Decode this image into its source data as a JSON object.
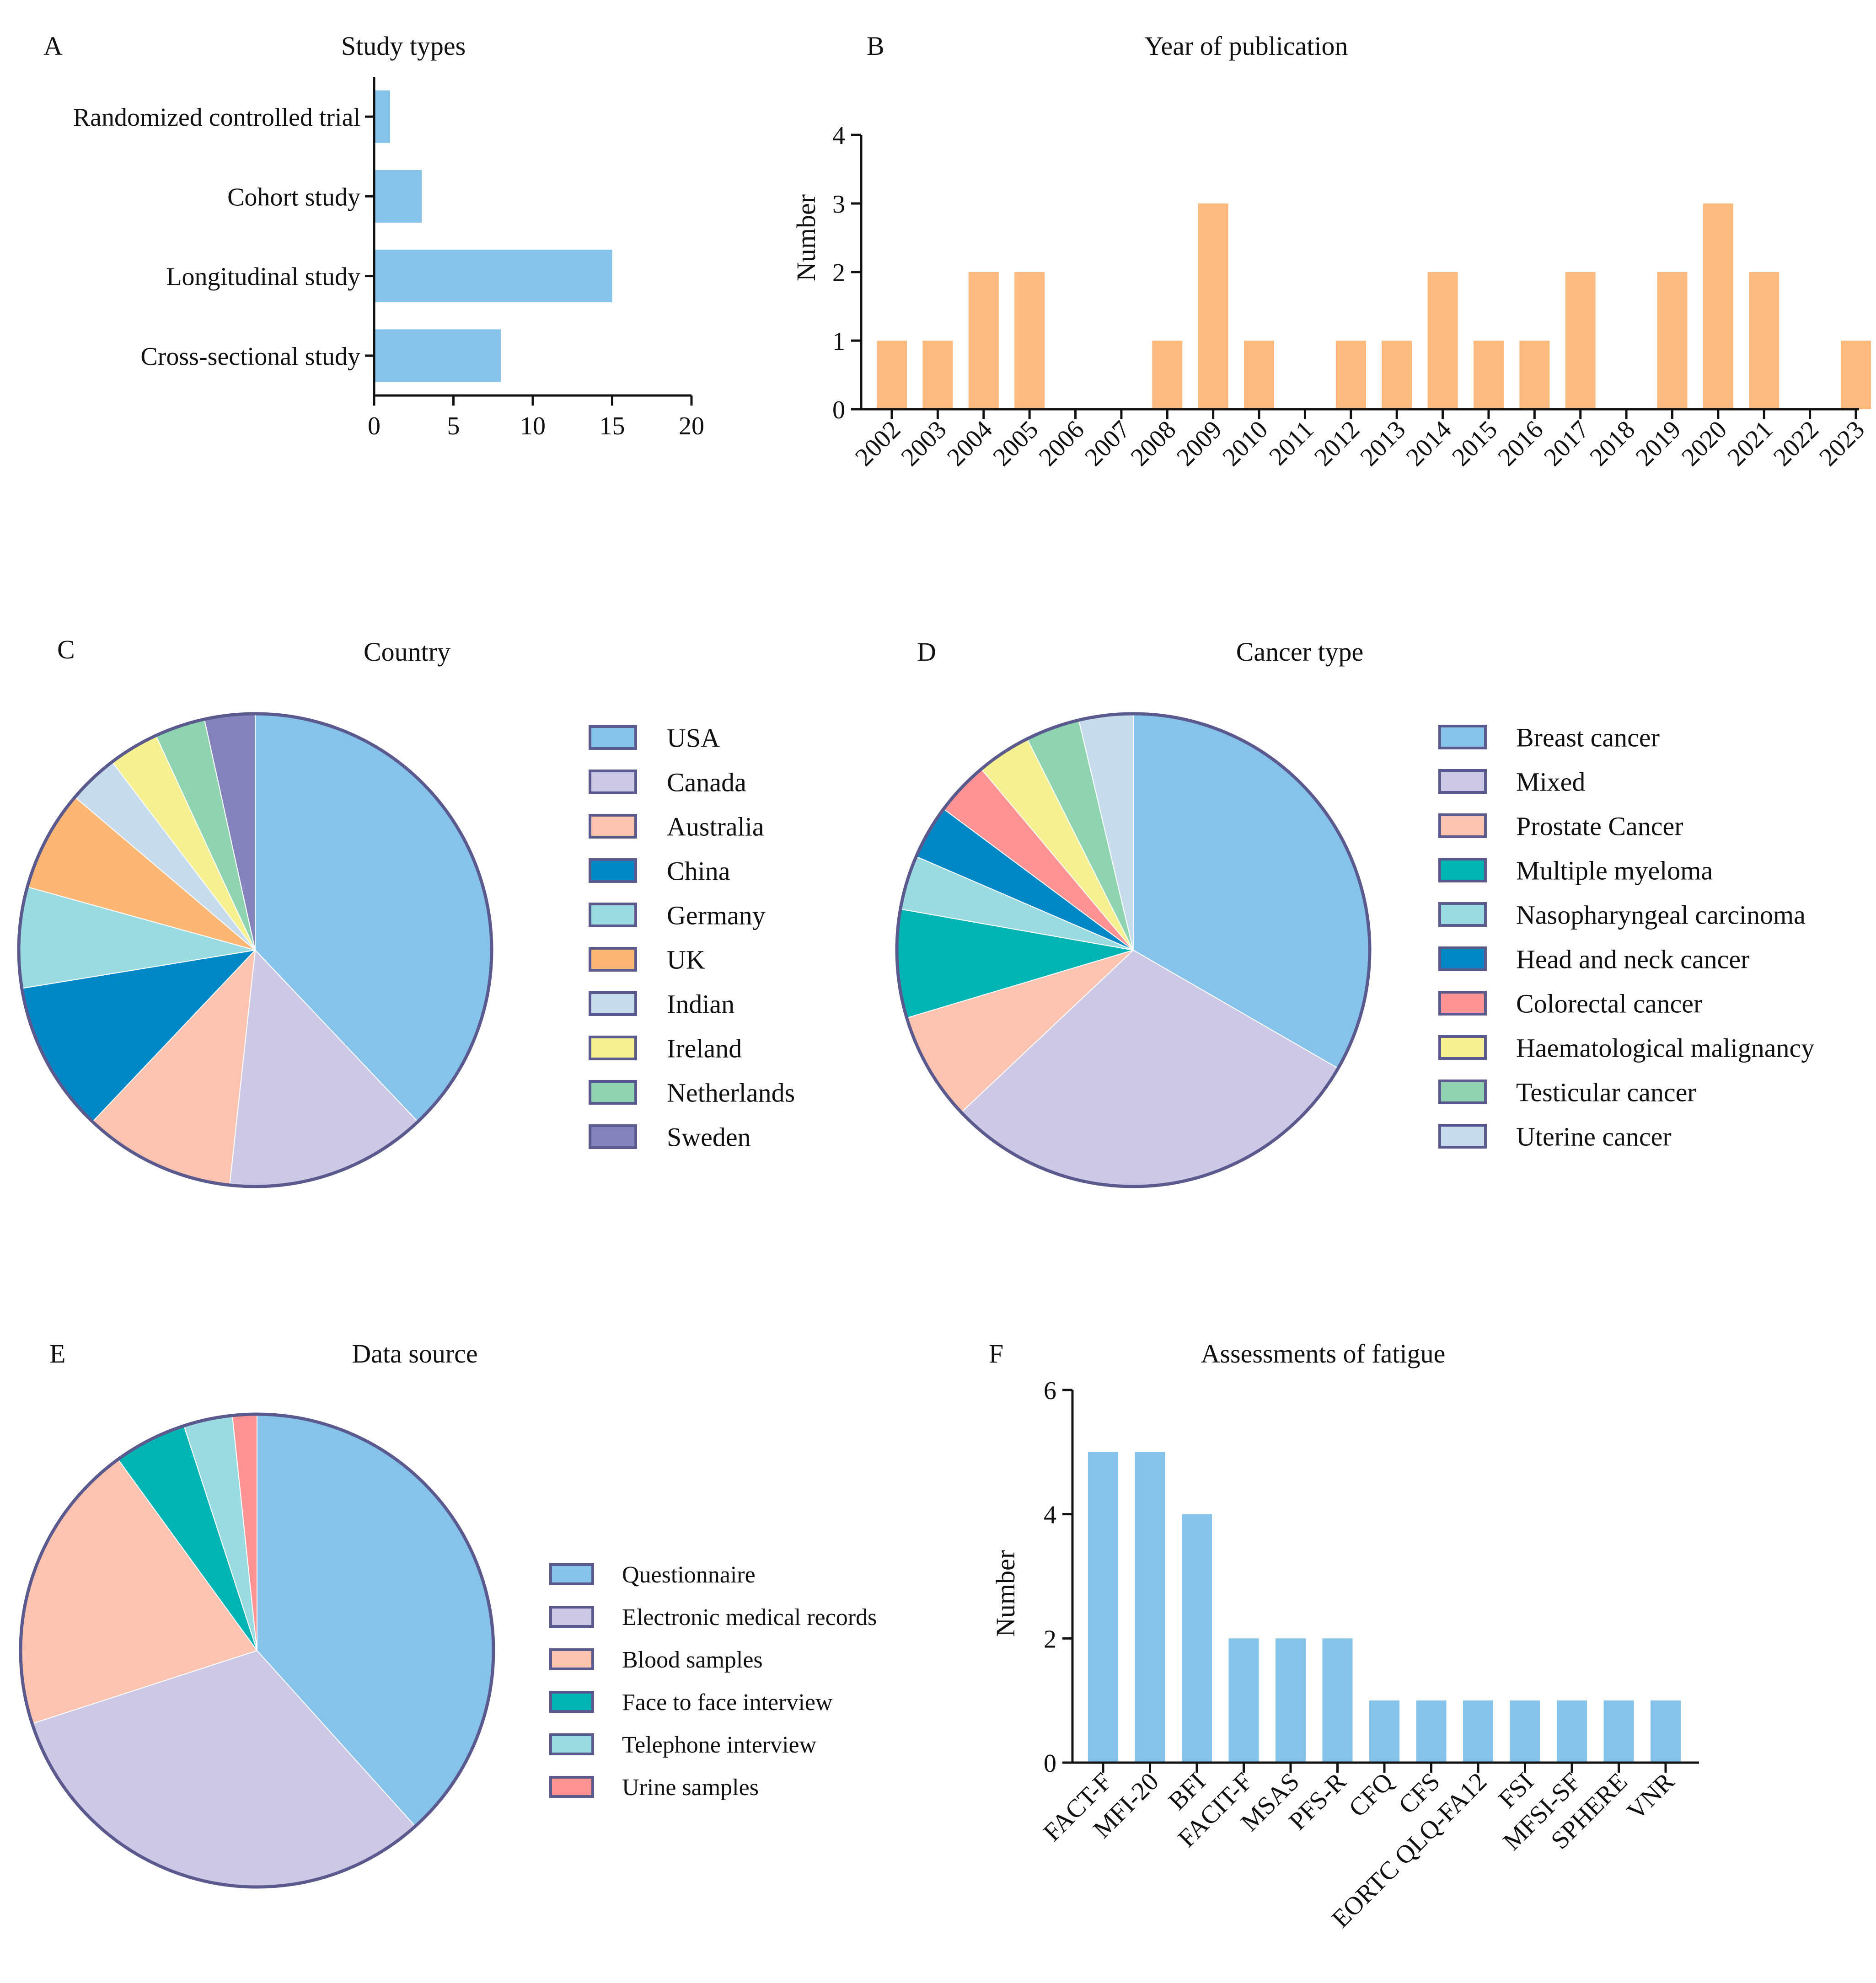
{
  "chart_data": [
    {
      "panel": "A",
      "type": "bar",
      "orientation": "horizontal",
      "title": "Study types",
      "categories": [
        "Randomized controlled trial",
        "Cohort study",
        "Longitudinal study",
        "Cross-sectional study"
      ],
      "values": [
        1,
        3,
        15,
        8
      ],
      "xlabel": "",
      "ylabel": "",
      "xlim": [
        0,
        20
      ],
      "xticks": [
        0,
        5,
        10,
        15,
        20
      ],
      "color": "#85C3EB",
      "grid": false
    },
    {
      "panel": "B",
      "type": "bar",
      "title": "Year of publication",
      "categories": [
        "2002",
        "2003",
        "2004",
        "2005",
        "2006",
        "2007",
        "2008",
        "2009",
        "2010",
        "2011",
        "2012",
        "2013",
        "2014",
        "2015",
        "2016",
        "2017",
        "2018",
        "2019",
        "2020",
        "2021",
        "2022",
        "2023"
      ],
      "values": [
        1,
        1,
        2,
        2,
        0,
        0,
        1,
        3,
        1,
        0,
        1,
        1,
        2,
        1,
        1,
        2,
        0,
        2,
        3,
        2,
        0,
        1
      ],
      "xlabel": "",
      "ylabel": "Number",
      "ylim": [
        0,
        4
      ],
      "yticks": [
        0,
        1,
        2,
        3,
        4
      ],
      "color": "#FDBA7E",
      "grid": false
    },
    {
      "panel": "C",
      "type": "pie",
      "title": "Country",
      "labels": [
        "USA",
        "Canada",
        "Australia",
        "China",
        "Germany",
        "UK",
        "Indian",
        "Ireland",
        "Netherlands",
        "Sweden"
      ],
      "values": [
        11,
        4,
        3,
        3,
        2,
        2,
        1,
        1,
        1,
        1
      ],
      "colors": [
        "#85C3EB",
        "#CCC8E6",
        "#FCC4B0",
        "#0087C6",
        "#9ADBE2",
        "#FDB774",
        "#C6DBEC",
        "#F5F190",
        "#8ED4B1",
        "#8482BA"
      ],
      "legend": "right"
    },
    {
      "panel": "D",
      "type": "pie",
      "title": "Cancer type",
      "labels": [
        "Breast cancer",
        "Mixed",
        "Prostate Cancer",
        "Multiple myeloma",
        "Nasopharyngeal carcinoma",
        "Head and neck cancer",
        "Colorectal cancer",
        "Haematological malignancy",
        "Testicular cancer",
        "Uterine cancer"
      ],
      "values": [
        9,
        8,
        2,
        2,
        1,
        1,
        1,
        1,
        1,
        1
      ],
      "colors": [
        "#85C3EB",
        "#CCC8E6",
        "#FCC4B0",
        "#00B4B4",
        "#9ADBE2",
        "#0087C6",
        "#FF9393",
        "#F5F190",
        "#8ED4B1",
        "#C6DBEC"
      ],
      "legend": "right"
    },
    {
      "panel": "E",
      "type": "pie",
      "title": "Data source",
      "labels": [
        "Questionnaire",
        "Electronic medical records",
        "Blood samples",
        "Face to face interview",
        "Telephone interview",
        "Urine samples"
      ],
      "values": [
        23,
        19,
        12,
        3,
        2,
        1
      ],
      "colors": [
        "#85C3EB",
        "#CCC8E6",
        "#FCC4B0",
        "#00B4B4",
        "#9ADBE2",
        "#FF9393"
      ],
      "legend": "right"
    },
    {
      "panel": "F",
      "type": "bar",
      "title": "Assessments of fatigue",
      "categories": [
        "FACT-F",
        "MFI-20",
        "BFI",
        "FACIT-F",
        "MSAS",
        "PFS-R",
        "CFQ",
        "CFS",
        "EORTC QLQ-FA12",
        "FSI",
        "MFSI-SF",
        "SPHERE",
        "VNR"
      ],
      "values": [
        5,
        5,
        4,
        2,
        2,
        2,
        1,
        1,
        1,
        1,
        1,
        1,
        1
      ],
      "xlabel": "",
      "ylabel": "Number",
      "ylim": [
        0,
        6
      ],
      "yticks": [
        0,
        2,
        4,
        6
      ],
      "color": "#85C3EB",
      "grid": false
    }
  ]
}
